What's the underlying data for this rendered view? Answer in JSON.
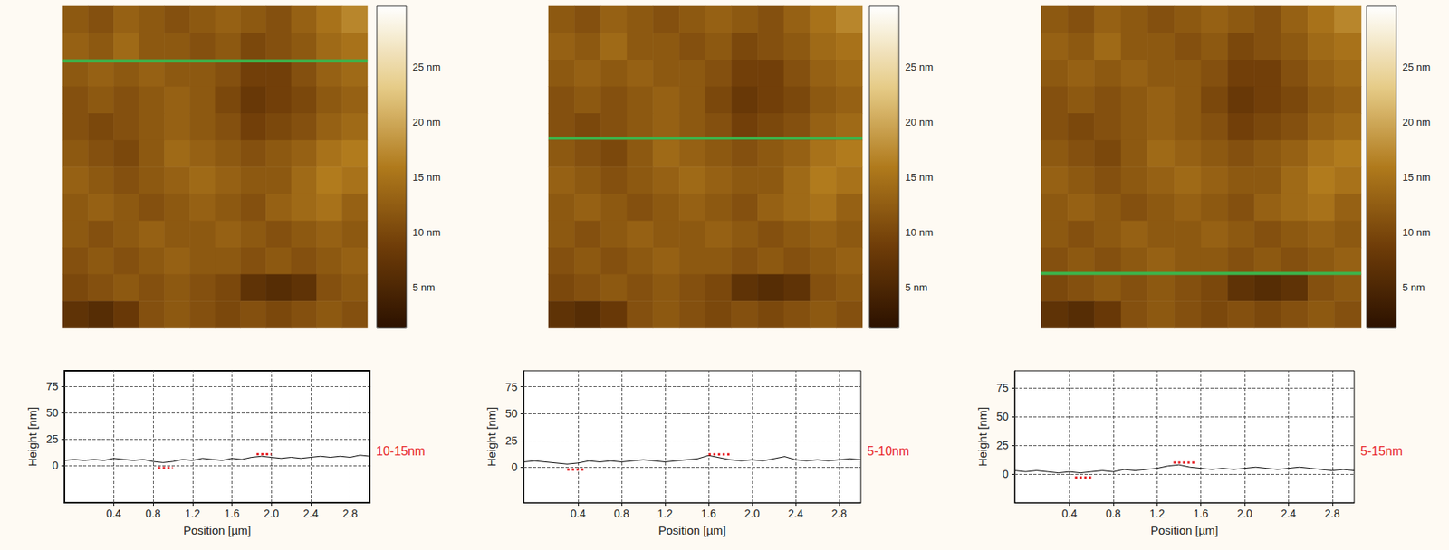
{
  "chart_data": [
    {
      "image": {
        "type": "heatmap",
        "xlim": [
          0,
          3
        ],
        "ylim": [
          0,
          3
        ],
        "cell_x": [
          0.125,
          0.375,
          0.625,
          0.875,
          1.125,
          1.375,
          1.625,
          1.875,
          2.125,
          2.375,
          2.625,
          2.875
        ],
        "cell_y": [
          2.875,
          2.625,
          2.375,
          2.125,
          1.875,
          1.625,
          1.375,
          1.125,
          0.875,
          0.625,
          0.375,
          0.125
        ],
        "cells": [
          [
            12,
            11,
            13,
            12,
            11,
            12,
            13,
            12,
            11,
            13,
            15,
            17
          ],
          [
            13,
            12,
            14,
            12,
            12,
            11,
            12,
            10,
            11,
            12,
            14,
            15
          ],
          [
            12,
            13,
            12,
            13,
            12,
            12,
            11,
            9,
            9,
            11,
            13,
            14
          ],
          [
            11,
            12,
            11,
            12,
            13,
            12,
            10,
            8,
            9,
            10,
            12,
            13
          ],
          [
            11,
            10,
            11,
            12,
            13,
            12,
            11,
            9,
            10,
            11,
            13,
            14
          ],
          [
            12,
            11,
            10,
            12,
            14,
            13,
            12,
            11,
            12,
            13,
            15,
            16
          ],
          [
            13,
            12,
            11,
            12,
            13,
            14,
            13,
            12,
            12,
            14,
            16,
            15
          ],
          [
            12,
            13,
            12,
            11,
            12,
            13,
            12,
            11,
            13,
            14,
            15,
            13
          ],
          [
            12,
            11,
            12,
            13,
            12,
            12,
            13,
            12,
            11,
            12,
            13,
            12
          ],
          [
            11,
            12,
            11,
            12,
            13,
            12,
            12,
            11,
            12,
            11,
            12,
            13
          ],
          [
            10,
            11,
            12,
            11,
            12,
            11,
            10,
            7,
            6,
            7,
            11,
            12
          ],
          [
            7,
            6,
            8,
            11,
            12,
            11,
            10,
            11,
            10,
            11,
            12,
            11
          ]
        ],
        "colorbar": {
          "range": [
            1.3,
            30.5
          ],
          "colors": [
            "#2b1100",
            "#6e3c08",
            "#b07a1c",
            "#e6cc88",
            "#ffffff"
          ],
          "ticks": [
            {
              "value": 5,
              "label": "5 nm"
            },
            {
              "value": 10,
              "label": "10 nm"
            },
            {
              "value": 15,
              "label": "15 nm"
            },
            {
              "value": 20,
              "label": "20 nm"
            },
            {
              "value": 25,
              "label": "25 nm"
            }
          ]
        },
        "line_y": 2.49,
        "line_color": "#3cb44b"
      },
      "profile": {
        "type": "line",
        "xlabel": "Position [µm]",
        "ylabel": "Height [nm]",
        "x": [
          -0.1,
          0,
          0.1,
          0.2,
          0.3,
          0.4,
          0.5,
          0.6,
          0.7,
          0.8,
          0.9,
          1.0,
          1.1,
          1.2,
          1.3,
          1.4,
          1.5,
          1.6,
          1.7,
          1.8,
          1.9,
          2.0,
          2.1,
          2.2,
          2.3,
          2.4,
          2.5,
          2.6,
          2.7,
          2.8,
          2.9,
          3.0
        ],
        "values": [
          5,
          6,
          5,
          6,
          5,
          7,
          6,
          5,
          6,
          4,
          3,
          4,
          6,
          5,
          7,
          6,
          5,
          7,
          6,
          8,
          9,
          8,
          7,
          8,
          7,
          8,
          9,
          8,
          9,
          8,
          10,
          9
        ],
        "color": "#000000",
        "xlim": [
          -0.1,
          3.0
        ],
        "xticks": [
          0.4,
          0.8,
          1.2,
          1.6,
          {
            "value": 2,
            "label": "2.0"
          },
          2.4,
          2.8
        ],
        "ylim": [
          -35,
          90
        ],
        "yticks": [
          0,
          25,
          50,
          75
        ],
        "grid": true,
        "markers": {
          "color": "#e8262b",
          "line_style": "dotted",
          "segments": [
            {
              "x": [
                0.85,
                1.0
              ],
              "y": -2
            },
            {
              "x": [
                1.85,
                2.0
              ],
              "y": 11
            }
          ]
        },
        "annotation": "10-15nm"
      }
    },
    {
      "image": {
        "type": "heatmap",
        "xlim": [
          0,
          3
        ],
        "ylim": [
          0,
          3
        ],
        "cell_x": [
          0.125,
          0.375,
          0.625,
          0.875,
          1.125,
          1.375,
          1.625,
          1.875,
          2.125,
          2.375,
          2.625,
          2.875
        ],
        "cell_y": [
          2.875,
          2.625,
          2.375,
          2.125,
          1.875,
          1.625,
          1.375,
          1.125,
          0.875,
          0.625,
          0.375,
          0.125
        ],
        "cells": [
          [
            12,
            11,
            13,
            12,
            11,
            12,
            13,
            12,
            11,
            13,
            15,
            17
          ],
          [
            13,
            12,
            14,
            12,
            12,
            11,
            12,
            10,
            11,
            12,
            14,
            15
          ],
          [
            12,
            13,
            12,
            13,
            12,
            12,
            11,
            9,
            9,
            11,
            13,
            14
          ],
          [
            11,
            12,
            11,
            12,
            13,
            12,
            10,
            8,
            9,
            10,
            12,
            13
          ],
          [
            11,
            10,
            11,
            12,
            13,
            12,
            11,
            9,
            10,
            11,
            13,
            14
          ],
          [
            12,
            11,
            10,
            12,
            14,
            13,
            12,
            11,
            12,
            13,
            15,
            16
          ],
          [
            13,
            12,
            11,
            12,
            13,
            14,
            13,
            12,
            12,
            14,
            16,
            15
          ],
          [
            12,
            13,
            12,
            11,
            12,
            13,
            12,
            11,
            13,
            14,
            15,
            13
          ],
          [
            12,
            11,
            12,
            13,
            12,
            12,
            13,
            12,
            11,
            12,
            13,
            12
          ],
          [
            11,
            12,
            11,
            12,
            13,
            12,
            12,
            11,
            12,
            11,
            12,
            13
          ],
          [
            10,
            11,
            12,
            11,
            12,
            11,
            10,
            7,
            6,
            7,
            11,
            12
          ],
          [
            7,
            6,
            8,
            11,
            12,
            11,
            10,
            11,
            10,
            11,
            12,
            11
          ]
        ],
        "colorbar": {
          "range": [
            1.3,
            30.5
          ],
          "colors": [
            "#2b1100",
            "#6e3c08",
            "#b07a1c",
            "#e6cc88",
            "#ffffff"
          ],
          "ticks": [
            {
              "value": 5,
              "label": "5 nm"
            },
            {
              "value": 10,
              "label": "10 nm"
            },
            {
              "value": 15,
              "label": "15 nm"
            },
            {
              "value": 20,
              "label": "20 nm"
            },
            {
              "value": 25,
              "label": "25 nm"
            }
          ]
        },
        "line_y": 1.77,
        "line_color": "#3cb44b"
      },
      "profile": {
        "type": "line",
        "xlabel": "Position [µm]",
        "ylabel": "Height [nm]",
        "x": [
          -0.1,
          0,
          0.1,
          0.2,
          0.3,
          0.4,
          0.5,
          0.6,
          0.7,
          0.8,
          0.9,
          1.0,
          1.1,
          1.2,
          1.3,
          1.4,
          1.5,
          1.6,
          1.7,
          1.8,
          1.9,
          2.0,
          2.1,
          2.2,
          2.3,
          2.4,
          2.5,
          2.6,
          2.7,
          2.8,
          2.9,
          3.0
        ],
        "values": [
          5,
          6,
          5,
          4,
          3,
          4,
          6,
          5,
          6,
          5,
          6,
          7,
          6,
          5,
          6,
          7,
          8,
          11,
          9,
          7,
          6,
          7,
          6,
          8,
          10,
          7,
          6,
          7,
          6,
          7,
          8,
          7
        ],
        "color": "#000000",
        "xlim": [
          -0.1,
          3.0
        ],
        "xticks": [
          0.4,
          0.8,
          1.2,
          1.6,
          {
            "value": 2,
            "label": "2.0"
          },
          2.4,
          2.8
        ],
        "ylim": [
          -33,
          90
        ],
        "yticks": [
          0,
          25,
          50,
          75
        ],
        "grid": true,
        "markers": {
          "color": "#e8262b",
          "line_style": "dotted",
          "segments": [
            {
              "x": [
                0.3,
                0.45
              ],
              "y": -2
            },
            {
              "x": [
                1.6,
                1.8
              ],
              "y": 12
            }
          ]
        },
        "annotation": "5-10nm"
      }
    },
    {
      "image": {
        "type": "heatmap",
        "xlim": [
          0,
          3
        ],
        "ylim": [
          0,
          3
        ],
        "cell_x": [
          0.125,
          0.375,
          0.625,
          0.875,
          1.125,
          1.375,
          1.625,
          1.875,
          2.125,
          2.375,
          2.625,
          2.875
        ],
        "cell_y": [
          2.875,
          2.625,
          2.375,
          2.125,
          1.875,
          1.625,
          1.375,
          1.125,
          0.875,
          0.625,
          0.375,
          0.125
        ],
        "cells": [
          [
            12,
            11,
            13,
            12,
            11,
            12,
            13,
            12,
            11,
            13,
            15,
            17
          ],
          [
            13,
            12,
            14,
            12,
            12,
            11,
            12,
            10,
            11,
            12,
            14,
            15
          ],
          [
            12,
            13,
            12,
            13,
            12,
            12,
            11,
            9,
            9,
            11,
            13,
            14
          ],
          [
            11,
            12,
            11,
            12,
            13,
            12,
            10,
            8,
            9,
            10,
            12,
            13
          ],
          [
            11,
            10,
            11,
            12,
            13,
            12,
            11,
            9,
            10,
            11,
            13,
            14
          ],
          [
            12,
            11,
            10,
            12,
            14,
            13,
            12,
            11,
            12,
            13,
            15,
            16
          ],
          [
            13,
            12,
            11,
            12,
            13,
            14,
            13,
            12,
            12,
            14,
            16,
            15
          ],
          [
            12,
            13,
            12,
            11,
            12,
            13,
            12,
            11,
            13,
            14,
            15,
            13
          ],
          [
            12,
            11,
            12,
            13,
            12,
            12,
            13,
            12,
            11,
            12,
            13,
            12
          ],
          [
            11,
            12,
            11,
            12,
            13,
            12,
            12,
            11,
            12,
            11,
            12,
            13
          ],
          [
            10,
            11,
            12,
            11,
            12,
            11,
            10,
            7,
            6,
            7,
            11,
            12
          ],
          [
            7,
            6,
            8,
            11,
            12,
            11,
            10,
            11,
            10,
            11,
            12,
            11
          ]
        ],
        "colorbar": {
          "range": [
            1.3,
            30.5
          ],
          "colors": [
            "#2b1100",
            "#6e3c08",
            "#b07a1c",
            "#e6cc88",
            "#ffffff"
          ],
          "ticks": [
            {
              "value": 5,
              "label": "5 nm"
            },
            {
              "value": 10,
              "label": "10 nm"
            },
            {
              "value": 15,
              "label": "15 nm"
            },
            {
              "value": 20,
              "label": "20 nm"
            },
            {
              "value": 25,
              "label": "25 nm"
            }
          ]
        },
        "line_y": 0.51,
        "line_color": "#3cb44b"
      },
      "profile": {
        "type": "line",
        "xlabel": "Position [µm]",
        "ylabel": "Height [nm]",
        "x": [
          -0.1,
          0,
          0.1,
          0.2,
          0.3,
          0.4,
          0.5,
          0.6,
          0.7,
          0.8,
          0.9,
          1.0,
          1.1,
          1.2,
          1.3,
          1.4,
          1.5,
          1.6,
          1.7,
          1.8,
          1.9,
          2.0,
          2.1,
          2.2,
          2.3,
          2.4,
          2.5,
          2.6,
          2.7,
          2.8,
          2.9,
          3.0
        ],
        "values": [
          3,
          2,
          3,
          2,
          1,
          2,
          1,
          2,
          3,
          2,
          4,
          3,
          4,
          5,
          7,
          8,
          6,
          5,
          4,
          5,
          4,
          5,
          6,
          5,
          4,
          5,
          6,
          5,
          4,
          3,
          4,
          3
        ],
        "color": "#000000",
        "xlim": [
          -0.1,
          3.0
        ],
        "xticks": [
          0.4,
          0.8,
          1.2,
          1.6,
          {
            "value": 2,
            "label": "2.0"
          },
          2.4,
          2.8
        ],
        "ylim": [
          -25,
          90
        ],
        "yticks": [
          0,
          25,
          50,
          75
        ],
        "grid": true,
        "markers": {
          "color": "#e8262b",
          "line_style": "dotted",
          "segments": [
            {
              "x": [
                0.45,
                0.6
              ],
              "y": -3
            },
            {
              "x": [
                1.35,
                1.55
              ],
              "y": 10
            }
          ]
        },
        "annotation": "5-15nm"
      }
    }
  ]
}
